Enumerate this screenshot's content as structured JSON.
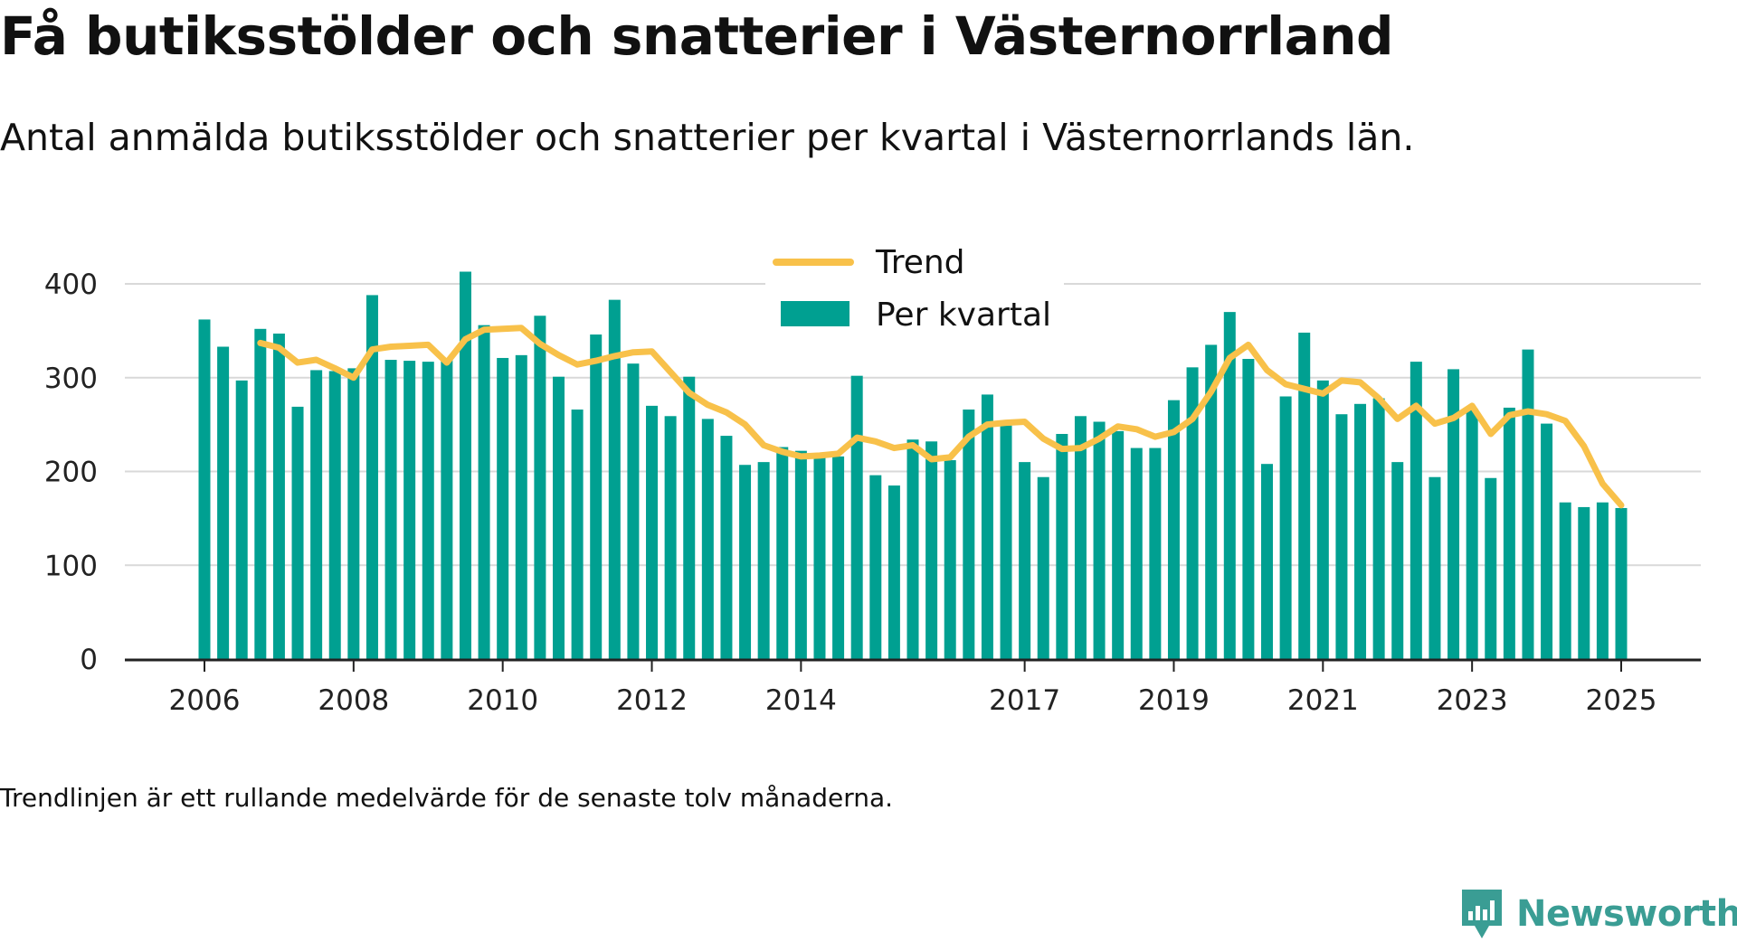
{
  "title": "Få butiksstölder och snatterier i Västernorrland",
  "subtitle": "Antal anmälda butiksstölder och snatterier per kvartal i Västernorrlands län.",
  "note": "Trendlinjen är ett rullande medelvärde för de senaste tolv månaderna.",
  "brand": {
    "name": "Newsworthy",
    "icon": "newsworthy-logo-icon",
    "color": "#3a9d94"
  },
  "chart_data": {
    "type": "bar",
    "title": "",
    "xlabel": "",
    "ylabel": "",
    "ylim": [
      0,
      400
    ],
    "yticks": [
      0,
      100,
      200,
      300,
      400
    ],
    "xticks": [
      "2006",
      "2008",
      "2010",
      "2012",
      "2014",
      "2017",
      "2019",
      "2021",
      "2023",
      "2025"
    ],
    "grid": "horizontal",
    "legend": "top-center",
    "colors": {
      "bars": "#00a091",
      "trend": "#f8c14a"
    },
    "categories": [
      "2006 K1",
      "2006 K2",
      "2006 K3",
      "2006 K4",
      "2007 K1",
      "2007 K2",
      "2007 K3",
      "2007 K4",
      "2008 K1",
      "2008 K2",
      "2008 K3",
      "2008 K4",
      "2009 K1",
      "2009 K2",
      "2009 K3",
      "2009 K4",
      "2010 K1",
      "2010 K2",
      "2010 K3",
      "2010 K4",
      "2011 K1",
      "2011 K2",
      "2011 K3",
      "2011 K4",
      "2012 K1",
      "2012 K2",
      "2012 K3",
      "2012 K4",
      "2013 K1",
      "2013 K2",
      "2013 K3",
      "2013 K4",
      "2014 K1",
      "2014 K2",
      "2014 K3",
      "2014 K4",
      "2015 K1",
      "2015 K2",
      "2015 K3",
      "2015 K4",
      "2016 K1",
      "2016 K2",
      "2016 K3",
      "2016 K4",
      "2017 K1",
      "2017 K2",
      "2017 K3",
      "2017 K4",
      "2018 K1",
      "2018 K2",
      "2018 K3",
      "2018 K4",
      "2019 K1",
      "2019 K2",
      "2019 K3",
      "2019 K4",
      "2020 K1",
      "2020 K2",
      "2020 K3",
      "2020 K4",
      "2021 K1",
      "2021 K2",
      "2021 K3",
      "2021 K4",
      "2022 K1",
      "2022 K2",
      "2022 K3",
      "2022 K4",
      "2023 K1",
      "2023 K2",
      "2023 K3",
      "2023 K4",
      "2024 K1",
      "2024 K2",
      "2024 K3",
      "2024 K4",
      "2025 K1"
    ],
    "series": [
      {
        "name": "Per kvartal",
        "type": "bar",
        "values": [
          362,
          333,
          297,
          352,
          347,
          269,
          308,
          307,
          310,
          388,
          319,
          318,
          317,
          319,
          413,
          356,
          321,
          324,
          366,
          301,
          266,
          346,
          383,
          315,
          270,
          259,
          301,
          256,
          238,
          207,
          210,
          226,
          222,
          217,
          216,
          302,
          196,
          185,
          234,
          232,
          212,
          266,
          282,
          249,
          210,
          194,
          240,
          259,
          253,
          243,
          225,
          225,
          276,
          311,
          335,
          370,
          320,
          208,
          280,
          348,
          297,
          261,
          272,
          278,
          210,
          317,
          194,
          309,
          267,
          193,
          268,
          330,
          251,
          167,
          162,
          167,
          161
        ]
      },
      {
        "name": "Trend",
        "type": "line",
        "values": [
          null,
          null,
          null,
          337,
          332,
          316,
          319,
          310,
          300,
          330,
          333,
          334,
          335,
          316,
          341,
          351,
          352,
          353,
          336,
          324,
          314,
          318,
          323,
          327,
          328,
          306,
          284,
          271,
          263,
          250,
          228,
          221,
          216,
          217,
          219,
          236,
          232,
          225,
          228,
          213,
          215,
          237,
          250,
          252,
          253,
          235,
          224,
          225,
          235,
          248,
          245,
          237,
          242,
          256,
          285,
          321,
          335,
          308,
          293,
          288,
          283,
          297,
          295,
          278,
          256,
          270,
          251,
          257,
          270,
          240,
          260,
          264,
          261,
          254,
          227,
          187,
          164
        ]
      }
    ]
  }
}
